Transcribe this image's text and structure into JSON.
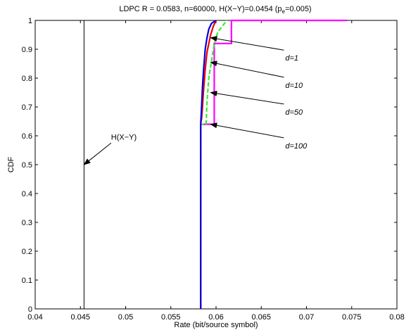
{
  "chart_data": {
    "type": "line",
    "title_parts": {
      "main": "LDPC R = 0.0583, n=60000, H(X−Y)=0.0454 (p",
      "sub": "e",
      "tail": "=0.005)"
    },
    "xlabel": "Rate (bit/source symbol)",
    "ylabel": "CDF",
    "xlim": [
      0.04,
      0.08
    ],
    "ylim": [
      0,
      1
    ],
    "xticks": [
      {
        "value": 0.04,
        "label": "0.04"
      },
      {
        "value": 0.045,
        "label": "0.045"
      },
      {
        "value": 0.05,
        "label": "0.05"
      },
      {
        "value": 0.055,
        "label": "0.055"
      },
      {
        "value": 0.06,
        "label": "0.06"
      },
      {
        "value": 0.065,
        "label": "0.065"
      },
      {
        "value": 0.07,
        "label": "0.07"
      },
      {
        "value": 0.075,
        "label": "0.075"
      },
      {
        "value": 0.08,
        "label": "0.08"
      }
    ],
    "yticks": [
      {
        "value": 0,
        "label": "0"
      },
      {
        "value": 0.1,
        "label": "0.1"
      },
      {
        "value": 0.2,
        "label": "0.2"
      },
      {
        "value": 0.3,
        "label": "0.3"
      },
      {
        "value": 0.4,
        "label": "0.4"
      },
      {
        "value": 0.5,
        "label": "0.5"
      },
      {
        "value": 0.6,
        "label": "0.6"
      },
      {
        "value": 0.7,
        "label": "0.7"
      },
      {
        "value": 0.8,
        "label": "0.8"
      },
      {
        "value": 0.9,
        "label": "0.9"
      },
      {
        "value": 1,
        "label": "1"
      }
    ],
    "grid": false,
    "reference_line": {
      "x": 0.0454,
      "label": "H(X−Y)",
      "color": "#000000"
    },
    "series": [
      {
        "key": "d100",
        "color": "#ff00ff",
        "dash": "solid",
        "points": [
          [
            0.0583,
            0
          ],
          [
            0.0583,
            0.64
          ],
          [
            0.0598,
            0.64
          ],
          [
            0.0598,
            0.92
          ],
          [
            0.0617,
            0.92
          ],
          [
            0.0617,
            1.0
          ],
          [
            0.0745,
            1.0
          ]
        ]
      },
      {
        "key": "d50",
        "color": "#33ee33",
        "dash": "dashed",
        "points": [
          [
            0.0583,
            0
          ],
          [
            0.0583,
            0.64
          ],
          [
            0.0589,
            0.64
          ],
          [
            0.059,
            0.72
          ],
          [
            0.0591,
            0.76
          ],
          [
            0.0592,
            0.8
          ],
          [
            0.0593,
            0.82
          ],
          [
            0.0595,
            0.86
          ],
          [
            0.0597,
            0.9
          ],
          [
            0.0599,
            0.93
          ],
          [
            0.0602,
            0.96
          ],
          [
            0.0607,
            0.98
          ],
          [
            0.0612,
            1.0
          ]
        ]
      },
      {
        "key": "d10",
        "color": "#ee0000",
        "dash": "solid",
        "points": [
          [
            0.0583,
            0
          ],
          [
            0.0583,
            0.64
          ],
          [
            0.0584,
            0.66
          ],
          [
            0.0585,
            0.7
          ],
          [
            0.0586,
            0.75
          ],
          [
            0.0587,
            0.79
          ],
          [
            0.0588,
            0.83
          ],
          [
            0.0589,
            0.86
          ],
          [
            0.059,
            0.89
          ],
          [
            0.0592,
            0.92
          ],
          [
            0.0594,
            0.95
          ],
          [
            0.0597,
            0.98
          ],
          [
            0.06,
            1.0
          ]
        ]
      },
      {
        "key": "d1",
        "color": "#0000dd",
        "dash": "solid",
        "points": [
          [
            0.0583,
            0
          ],
          [
            0.0583,
            0.64
          ],
          [
            0.0584,
            0.7
          ],
          [
            0.0585,
            0.77
          ],
          [
            0.0586,
            0.82
          ],
          [
            0.0587,
            0.86
          ],
          [
            0.0588,
            0.9
          ],
          [
            0.059,
            0.94
          ],
          [
            0.0592,
            0.97
          ],
          [
            0.0595,
            0.99
          ],
          [
            0.06,
            1.0
          ]
        ]
      }
    ],
    "annotations": [
      {
        "key": "d1",
        "label": "d=1",
        "from": [
          0.0675,
          0.897
        ],
        "to": [
          0.0594,
          0.94
        ],
        "italic": true
      },
      {
        "key": "d10",
        "label": "d=10",
        "from": [
          0.0675,
          0.803
        ],
        "to": [
          0.0594,
          0.855
        ],
        "italic": true
      },
      {
        "key": "d50",
        "label": "d=50",
        "from": [
          0.0675,
          0.71
        ],
        "to": [
          0.0594,
          0.75
        ],
        "italic": true
      },
      {
        "key": "d100",
        "label": "d=100",
        "from": [
          0.0675,
          0.593
        ],
        "to": [
          0.0594,
          0.64
        ],
        "italic": true
      },
      {
        "key": "hxy",
        "label": "H(X−Y)",
        "from": [
          0.0484,
          0.575
        ],
        "to": [
          0.0454,
          0.5
        ],
        "italic": false
      }
    ]
  }
}
